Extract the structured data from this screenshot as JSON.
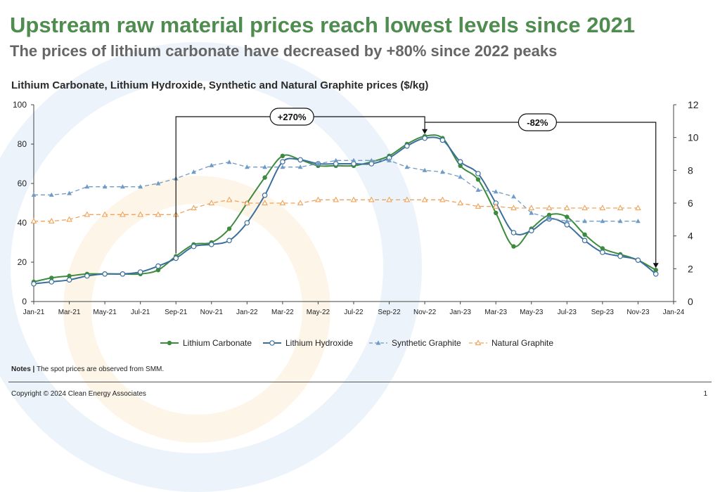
{
  "slide": {
    "title": "Upstream raw material prices reach lowest levels since 2021",
    "subtitle": "The prices of lithium carbonate have decreased by +80% since 2022 peaks",
    "notes_label": "Notes |",
    "notes_text": "The spot prices are observed from SMM.",
    "copyright": "Copyright © 2024 Clean Energy Associates",
    "page_number": "1"
  },
  "chart_data": {
    "type": "line",
    "title": "Lithium Carbonate, Lithium Hydroxide, Synthetic and Natural Graphite prices ($/kg)",
    "x": [
      "2021-01",
      "2021-02",
      "2021-03",
      "2021-04",
      "2021-05",
      "2021-06",
      "2021-07",
      "2021-08",
      "2021-09",
      "2021-10",
      "2021-11",
      "2021-12",
      "2022-01",
      "2022-02",
      "2022-03",
      "2022-04",
      "2022-05",
      "2022-06",
      "2022-07",
      "2022-08",
      "2022-09",
      "2022-10",
      "2022-11",
      "2022-12",
      "2023-01",
      "2023-02",
      "2023-03",
      "2023-04",
      "2023-05",
      "2023-06",
      "2023-07",
      "2023-08",
      "2023-09",
      "2023-10",
      "2023-11",
      "2023-12"
    ],
    "x_ticks": [
      "Jan-21",
      "Mar-21",
      "May-21",
      "Jul-21",
      "Sep-21",
      "Nov-21",
      "Jan-22",
      "Mar-22",
      "May-22",
      "Jul-22",
      "Sep-22",
      "Nov-22",
      "Jan-23",
      "Mar-23",
      "May-23",
      "Jul-23",
      "Sep-23",
      "Nov-23",
      "Jan-24"
    ],
    "y_left": {
      "range": [
        0,
        100
      ],
      "ticks": [
        0,
        20,
        40,
        60,
        80,
        100
      ]
    },
    "y_right": {
      "range": [
        0,
        12
      ],
      "ticks": [
        0,
        2,
        4,
        6,
        8,
        10,
        12
      ]
    },
    "series": [
      {
        "name": "Lithium Carbonate",
        "axis": "left",
        "color": "#3d8b3d",
        "marker": "filled-circle",
        "dash": "solid",
        "values": [
          10,
          12,
          13,
          14,
          14,
          14,
          14,
          16,
          23,
          29,
          30,
          37,
          50,
          63,
          74,
          72,
          69,
          69,
          69,
          71,
          74,
          80,
          84,
          83,
          69,
          62,
          45,
          28,
          37,
          44,
          43,
          34,
          27,
          24,
          21,
          16
        ]
      },
      {
        "name": "Lithium Hydroxide",
        "axis": "left",
        "color": "#3b6f9c",
        "marker": "open-circle",
        "dash": "solid",
        "values": [
          9,
          10,
          11,
          13,
          14,
          14,
          15,
          18,
          22,
          28,
          29,
          31,
          40,
          54,
          71,
          72,
          70,
          70,
          70,
          70,
          73,
          79,
          83,
          82,
          71,
          65,
          50,
          35,
          36,
          42,
          39,
          31,
          25,
          23,
          21,
          14
        ]
      },
      {
        "name": "Synthetic Graphite",
        "axis": "right",
        "color": "#6f9bc6",
        "marker": "filled-triangle",
        "dash": "dashed",
        "values": [
          6.5,
          6.5,
          6.6,
          7.0,
          7.0,
          7.0,
          7.0,
          7.2,
          7.5,
          7.9,
          8.3,
          8.5,
          8.2,
          8.2,
          8.2,
          8.2,
          8.4,
          8.6,
          8.6,
          8.6,
          8.6,
          8.2,
          8.0,
          7.9,
          7.6,
          6.8,
          6.7,
          6.4,
          5.4,
          5.1,
          4.9,
          4.9,
          4.9,
          4.9,
          4.9,
          null
        ]
      },
      {
        "name": "Natural Graphite",
        "axis": "right",
        "color": "#f0a35a",
        "marker": "open-triangle",
        "dash": "dashed",
        "values": [
          4.9,
          4.9,
          5.0,
          5.3,
          5.3,
          5.3,
          5.3,
          5.3,
          5.3,
          5.7,
          6.0,
          6.2,
          6.0,
          6.0,
          6.0,
          6.0,
          6.2,
          6.2,
          6.2,
          6.2,
          6.2,
          6.2,
          6.2,
          6.2,
          6.0,
          5.8,
          5.8,
          5.7,
          5.7,
          5.7,
          5.7,
          5.7,
          5.7,
          5.7,
          5.7,
          null
        ]
      }
    ],
    "annotations": [
      {
        "text": "+270%",
        "from": "2021-09",
        "to": "2022-11"
      },
      {
        "text": "-82%",
        "from": "2022-11",
        "to": "2023-12"
      }
    ],
    "legend_position": "bottom",
    "grid": "horizontal"
  }
}
